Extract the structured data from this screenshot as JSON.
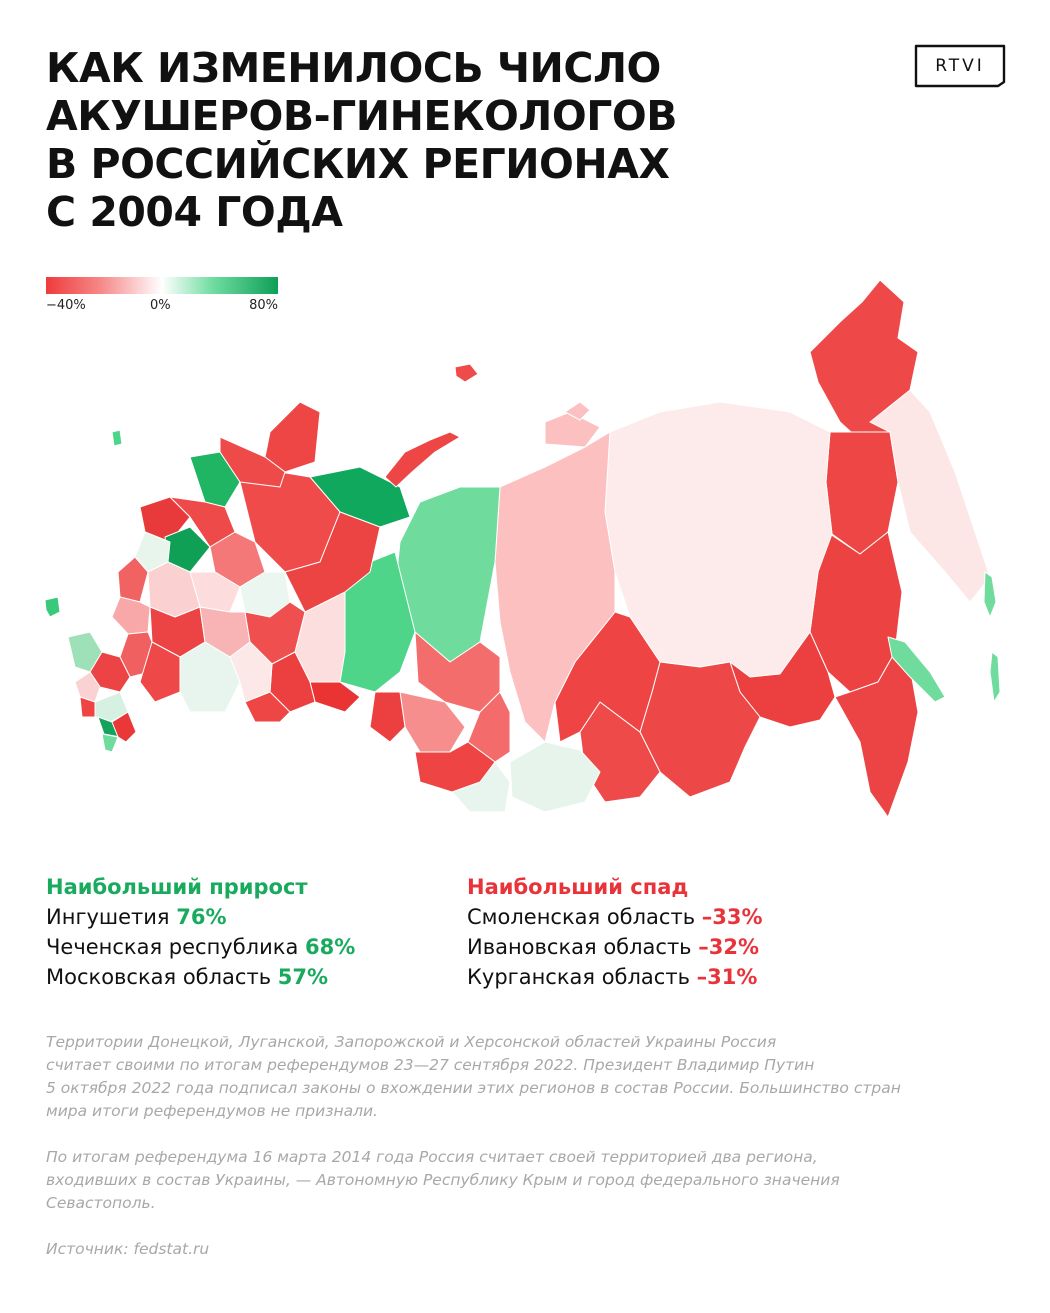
{
  "header": {
    "title_lines": [
      "КАК ИЗМЕНИЛОСЬ ЧИСЛО",
      "АКУШЕРОВ-ГИНЕКОЛОГОВ",
      "В РОССИЙСКИХ РЕГИОНАХ",
      "С 2004 ГОДА"
    ],
    "logo_text": "RTVI"
  },
  "legend": {
    "min_label": "−40%",
    "mid_label": "0%",
    "max_label": "80%",
    "min_value": -40,
    "max_value": 80,
    "colors": [
      "#ef3b3b",
      "#f68a8a",
      "#ffffff",
      "#6fdca0",
      "#0e9f58"
    ]
  },
  "highlights": {
    "growth": {
      "heading": "Наибольший прирост",
      "color": "#1aaa5e",
      "items": [
        {
          "region": "Ингушетия",
          "value": "76%"
        },
        {
          "region": "Чеченская республика",
          "value": "68%"
        },
        {
          "region": "Московская область",
          "value": "57%"
        }
      ]
    },
    "decline": {
      "heading": "Наибольший спад",
      "color": "#e8333a",
      "items": [
        {
          "region": "Смоленская область",
          "value": "–33%"
        },
        {
          "region": "Ивановская область",
          "value": "–32%"
        },
        {
          "region": "Курганская область",
          "value": "–31%"
        }
      ]
    }
  },
  "notes": [
    [
      "Территории Донецкой, Луганской, Запорожской и Херсонской областей Украины Россия",
      "считает своими по итогам референдумов 23—27 сентября 2022. Президент Владимир Путин",
      "5 октября 2022 года подписал законы о вхождении этих регионов в состав России. Большинство стран",
      "мира итоги референдумов не признали."
    ],
    [
      "По итогам референдума 16 марта 2014 года Россия считает своей территорией два региона,",
      "входивших в состав Украины, — Автономную Республику Крым и город федерального значения",
      "Севастополь."
    ],
    [
      "Источник: fedstat.ru"
    ]
  ]
}
